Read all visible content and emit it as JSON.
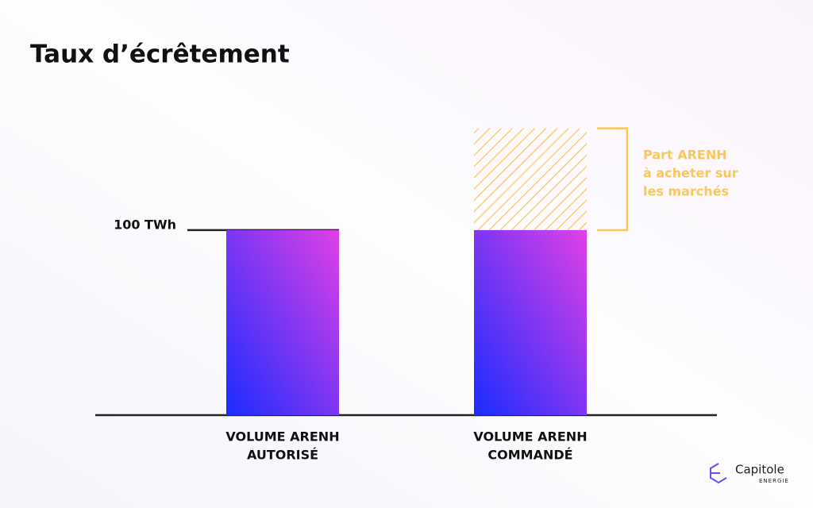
{
  "chart_data": {
    "type": "bar",
    "title": "Taux d’écrêtement",
    "categories": [
      [
        "VOLUME ARENH",
        "AUTORISÉ"
      ],
      [
        "VOLUME ARENH",
        "COMMANDÉ"
      ]
    ],
    "series": [
      {
        "values": [
          100,
          100
        ],
        "color": [
          "#e040e6",
          "#1a2cff"
        ]
      },
      {
        "values": [
          null,
          55
        ],
        "color": "#f9c75c"
      }
    ],
    "annotation": [
      "Part ARENH",
      "à acheter sur",
      "les marchés"
    ],
    "ylim": [
      0,
      160
    ],
    "yticks": [
      {
        "value": 100,
        "label": "100 TWh"
      }
    ]
  },
  "logo": {
    "name": "Capitole",
    "subtitle": "ENERGIE"
  }
}
